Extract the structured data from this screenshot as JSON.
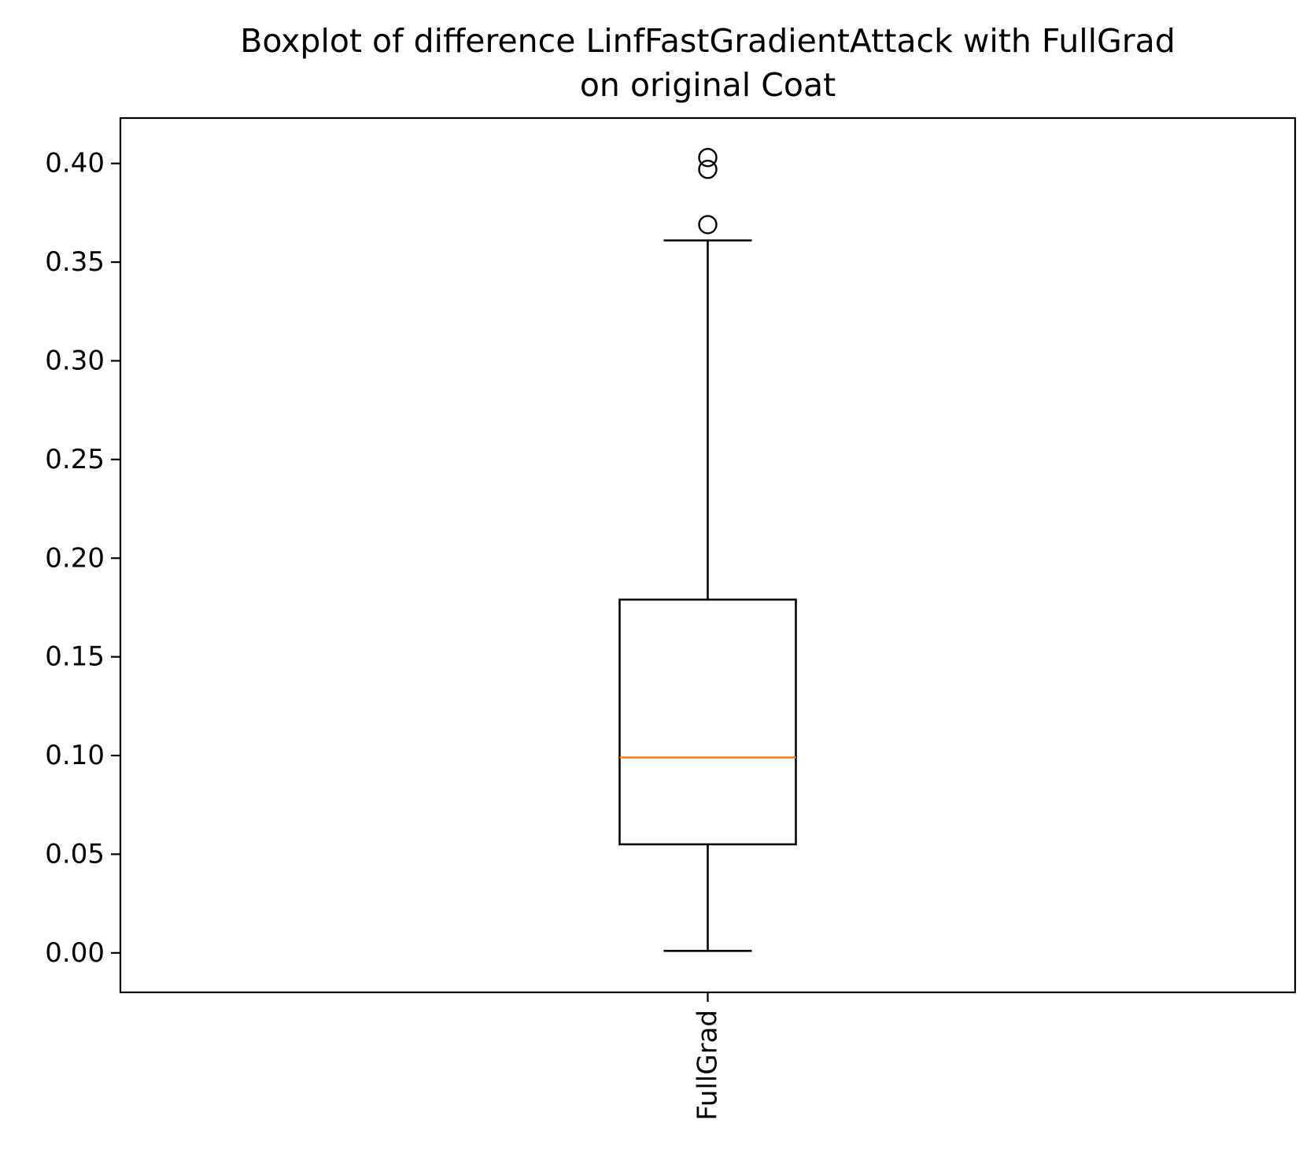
{
  "chart_data": {
    "type": "boxplot",
    "title": "Boxplot of difference LinfFastGradientAttack with FullGrad\non original Coat",
    "title_lines": [
      "Boxplot of difference LinfFastGradientAttack with FullGrad",
      "on original Coat"
    ],
    "xlabel": "",
    "ylabel": "",
    "categories": [
      "FullGrad"
    ],
    "boxes": [
      {
        "label": "FullGrad",
        "whisker_low": 0.001,
        "q1": 0.055,
        "median": 0.099,
        "q3": 0.179,
        "whisker_high": 0.361,
        "outliers": [
          0.369,
          0.397,
          0.403
        ]
      }
    ],
    "yticks": [
      0.0,
      0.05,
      0.1,
      0.15,
      0.2,
      0.25,
      0.3,
      0.35,
      0.4
    ],
    "ytick_labels": [
      "0.00",
      "0.05",
      "0.10",
      "0.15",
      "0.20",
      "0.25",
      "0.30",
      "0.35",
      "0.40"
    ],
    "ylim": [
      -0.02,
      0.423
    ],
    "grid": false,
    "colors": {
      "box": "#000000",
      "median": "#ff7f0e",
      "outlier": "#000000"
    }
  }
}
